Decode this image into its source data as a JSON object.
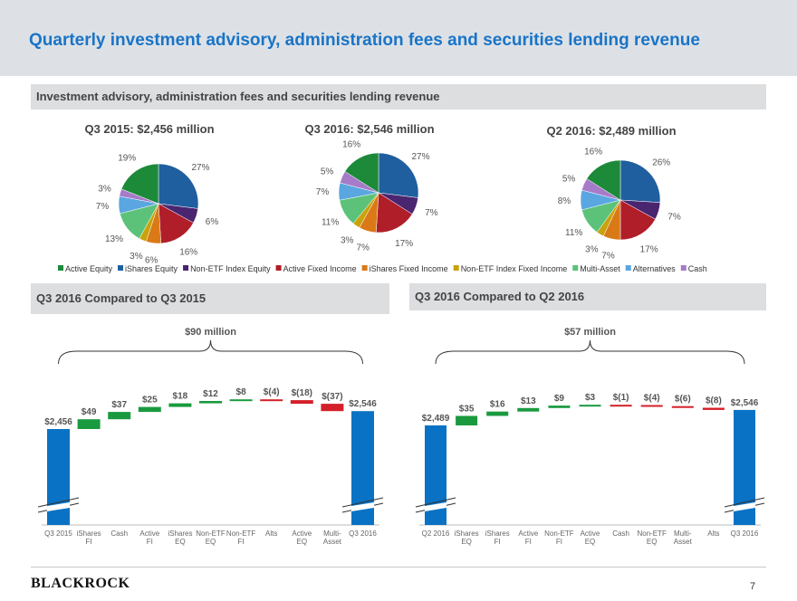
{
  "page_title": "Quarterly investment advisory, administration fees and securities lending revenue",
  "section_pies": "Investment advisory, administration fees and securities lending revenue",
  "section_left": "Q3 2016 Compared to Q3 2015",
  "section_right": "Q3 2016 Compared to Q2 2016",
  "brand": "BlackRock",
  "page_number": "7",
  "legend": [
    {
      "name": "Active Equity",
      "color": "#1d8a3a"
    },
    {
      "name": "iShares Equity",
      "color": "#1f5f9f"
    },
    {
      "name": "Non-ETF Index Equity",
      "color": "#4a2570"
    },
    {
      "name": "Active Fixed Income",
      "color": "#b01e2a"
    },
    {
      "name": "iShares Fixed Income",
      "color": "#d97a17"
    },
    {
      "name": "Non-ETF Index Fixed Income",
      "color": "#c9a20d"
    },
    {
      "name": "Multi-Asset",
      "color": "#5cc27a"
    },
    {
      "name": "Alternatives",
      "color": "#5aa6e0"
    },
    {
      "name": "Cash",
      "color": "#a67bc8"
    }
  ],
  "chart_data": [
    {
      "type": "pie",
      "title": "Q3 2015: $2,456 million",
      "categories": [
        "iShares Equity",
        "Non-ETF Index Equity",
        "Active Fixed Income",
        "iShares Fixed Income",
        "Non-ETF Index Fixed Income",
        "Multi-Asset",
        "Alternatives",
        "Cash",
        "Active Equity"
      ],
      "values": [
        27,
        6,
        16,
        6,
        3,
        13,
        7,
        3,
        19
      ],
      "labels": [
        "27%",
        "6%",
        "16%",
        "6%",
        "3%",
        "13%",
        "7%",
        "3%",
        "19%"
      ]
    },
    {
      "type": "pie",
      "title": "Q3 2016: $2,546 million",
      "categories": [
        "iShares Equity",
        "Non-ETF Index Equity",
        "Active Fixed Income",
        "iShares Fixed Income",
        "Non-ETF Index Fixed Income",
        "Multi-Asset",
        "Alternatives",
        "Cash",
        "Active Equity"
      ],
      "values": [
        27,
        7,
        17,
        7,
        3,
        11,
        7,
        5,
        16
      ],
      "labels": [
        "27%",
        "7%",
        "17%",
        "7%",
        "3%",
        "11%",
        "7%",
        "5%",
        "16%"
      ]
    },
    {
      "type": "pie",
      "title": "Q2 2016: $2,489 million",
      "categories": [
        "iShares Equity",
        "Non-ETF Index Equity",
        "Active Fixed Income",
        "iShares Fixed Income",
        "Non-ETF Index Fixed Income",
        "Multi-Asset",
        "Alternatives",
        "Cash",
        "Active Equity"
      ],
      "values": [
        26,
        7,
        17,
        7,
        3,
        11,
        8,
        5,
        16
      ],
      "labels": [
        "26%",
        "7%",
        "17%",
        "7%",
        "3%",
        "11%",
        "8%",
        "5%",
        "16%"
      ]
    },
    {
      "type": "bar",
      "subtype": "waterfall",
      "title": "Q3 2016 Compared to Q3 2015",
      "annotation": "$90 million",
      "categories": [
        [
          "Q3 2015"
        ],
        [
          "iShares",
          "FI"
        ],
        [
          "Cash"
        ],
        [
          "Active",
          "FI"
        ],
        [
          "iShares",
          "EQ"
        ],
        [
          "Non-ETF",
          "EQ"
        ],
        [
          "Non-ETF",
          "FI"
        ],
        [
          "Alts"
        ],
        [
          "Active",
          "EQ"
        ],
        [
          "Multi-",
          "Asset"
        ],
        [
          "Q3 2016"
        ]
      ],
      "values": [
        2456,
        49,
        37,
        25,
        18,
        12,
        8,
        -4,
        -18,
        -37,
        2546
      ],
      "labels": [
        "$2,456",
        "$49",
        "$37",
        "$25",
        "$18",
        "$12",
        "$8",
        "$(4)",
        "$(18)",
        "$(37)",
        "$2,546"
      ],
      "kinds": [
        "total",
        "delta",
        "delta",
        "delta",
        "delta",
        "delta",
        "delta",
        "delta",
        "delta",
        "delta",
        "total"
      ]
    },
    {
      "type": "bar",
      "subtype": "waterfall",
      "title": "Q3 2016 Compared to Q2 2016",
      "annotation": "$57 million",
      "categories": [
        [
          "Q2 2016"
        ],
        [
          "iShares",
          "EQ"
        ],
        [
          "iShares",
          "FI"
        ],
        [
          "Active",
          "FI"
        ],
        [
          "Non-ETF",
          "FI"
        ],
        [
          "Active",
          "EQ"
        ],
        [
          "Cash"
        ],
        [
          "Non-ETF",
          "EQ"
        ],
        [
          "Multi-",
          "Asset"
        ],
        [
          "Alts"
        ],
        [
          "Q3 2016"
        ]
      ],
      "values": [
        2489,
        35,
        16,
        13,
        9,
        3,
        -1,
        -4,
        -6,
        -8,
        2546
      ],
      "labels": [
        "$2,489",
        "$35",
        "$16",
        "$13",
        "$9",
        "$3",
        "$(1)",
        "$(4)",
        "$(6)",
        "$(8)",
        "$2,546"
      ],
      "kinds": [
        "total",
        "delta",
        "delta",
        "delta",
        "delta",
        "delta",
        "delta",
        "delta",
        "delta",
        "delta",
        "total"
      ]
    }
  ]
}
